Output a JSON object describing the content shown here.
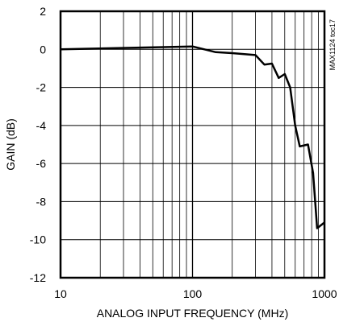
{
  "chart_data": {
    "type": "line",
    "title": "",
    "xlabel": "ANALOG INPUT FREQUENCY (MHz)",
    "ylabel": "GAIN (dB)",
    "xscale": "log",
    "xlim": [
      10,
      1000
    ],
    "ylim": [
      -12,
      2
    ],
    "x_ticks": [
      10,
      100,
      1000
    ],
    "x_tick_labels": [
      "10",
      "100",
      "1000"
    ],
    "y_ticks": [
      2,
      0,
      -2,
      -4,
      -6,
      -8,
      -10,
      -12
    ],
    "y_tick_labels": [
      "2",
      "0",
      "-2",
      "-4",
      "-6",
      "-8",
      "-10",
      "-12"
    ],
    "grid": true,
    "annotation": "MAX1124 toc17",
    "series": [
      {
        "name": "",
        "x": [
          10,
          100,
          150,
          200,
          300,
          350,
          400,
          450,
          500,
          550,
          600,
          650,
          750,
          820,
          880,
          1000
        ],
        "y": [
          0.0,
          0.15,
          -0.15,
          -0.2,
          -0.3,
          -0.8,
          -0.75,
          -1.5,
          -1.3,
          -2.0,
          -4.0,
          -5.1,
          -5.0,
          -6.5,
          -9.4,
          -9.1
        ]
      }
    ]
  }
}
